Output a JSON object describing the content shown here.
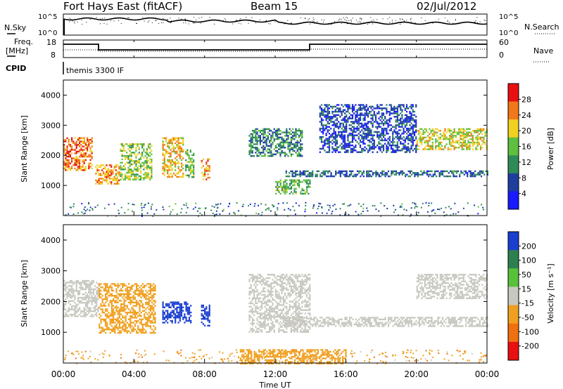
{
  "header": {
    "station": "Fort Hays East (fitACF)",
    "beam": "Beam 15",
    "date": "02/Jul/2012"
  },
  "noise_panel": {
    "left_label": "N.Sky",
    "right_label": "N.Search",
    "left_ticks": [
      "10^5",
      "10^0"
    ],
    "right_ticks": [
      "10^5",
      "10^0"
    ]
  },
  "freq_panel": {
    "left_label_1": "Freq.",
    "left_label_2": "[MHz]",
    "right_label": "Nave",
    "left_ticks": [
      "18",
      "8"
    ],
    "right_ticks": [
      "60",
      "0"
    ]
  },
  "cpid": {
    "label": "CPID",
    "value": "themis 3300 IF"
  },
  "power_panel": {
    "ylabel": "Slant Range [km]",
    "yticks": [
      "4000",
      "3000",
      "2000",
      "1000"
    ],
    "colorbar_label": "Power [dB]",
    "colorbar_ticks": [
      "28",
      "24",
      "20",
      "16",
      "12",
      "8",
      "4"
    ],
    "colors": [
      "#1a1aff",
      "#1e3f9e",
      "#2e8b57",
      "#5fbf3f",
      "#f0d020",
      "#f07818",
      "#e81010"
    ]
  },
  "velocity_panel": {
    "ylabel": "Slant Range [km]",
    "yticks": [
      "4000",
      "3000",
      "2000",
      "1000"
    ],
    "colorbar_label": "Velocity [m s⁻¹]",
    "colorbar_ticks": [
      "200",
      "100",
      "50",
      "15",
      "-15",
      "-50",
      "-100",
      "-200"
    ],
    "colors": [
      "#1a3fd0",
      "#2e7f4f",
      "#57c13a",
      "#c8c8c0",
      "#f0a020",
      "#f07010",
      "#e81010"
    ]
  },
  "x_axis": {
    "ticks": [
      "00:00",
      "04:00",
      "08:00",
      "12:00",
      "16:00",
      "20:00",
      "00:00"
    ],
    "label": "Time UT"
  },
  "chart_data": [
    {
      "type": "heatmap",
      "name": "power",
      "xlabel": "Time UT",
      "ylabel": "Slant Range [km]",
      "xlim_hours": [
        0,
        24
      ],
      "ylim": [
        0,
        4500
      ],
      "zlabel": "Power [dB]",
      "zlim": [
        0,
        30
      ],
      "regions": [
        {
          "t": [
            0.0,
            1.6
          ],
          "r": [
            1500,
            2600
          ],
          "p": 24
        },
        {
          "t": [
            1.8,
            3.2
          ],
          "r": [
            1050,
            1700
          ],
          "p": 22
        },
        {
          "t": [
            3.2,
            5.0
          ],
          "r": [
            1200,
            2400
          ],
          "p": 16
        },
        {
          "t": [
            5.6,
            6.8
          ],
          "r": [
            1300,
            2600
          ],
          "p": 20
        },
        {
          "t": [
            6.9,
            7.4
          ],
          "r": [
            1300,
            2200
          ],
          "p": 14
        },
        {
          "t": [
            7.8,
            8.3
          ],
          "r": [
            1200,
            1900
          ],
          "p": 22
        },
        {
          "t": [
            10.5,
            13.5
          ],
          "r": [
            2000,
            2900
          ],
          "p": 10
        },
        {
          "t": [
            12.0,
            14.0
          ],
          "r": [
            700,
            1200
          ],
          "p": 14
        },
        {
          "t": [
            12.5,
            24.0
          ],
          "r": [
            1300,
            1500
          ],
          "p": 8
        },
        {
          "t": [
            20.0,
            24.0
          ],
          "r": [
            2200,
            2900
          ],
          "p": 18
        },
        {
          "t": [
            14.5,
            20.0
          ],
          "r": [
            2100,
            3700
          ],
          "p": 6
        }
      ]
    },
    {
      "type": "heatmap",
      "name": "velocity",
      "xlabel": "Time UT",
      "ylabel": "Slant Range [km]",
      "xlim_hours": [
        0,
        24
      ],
      "ylim": [
        0,
        4500
      ],
      "zlabel": "Velocity [m s⁻¹]",
      "zlim": [
        -200,
        200
      ],
      "regions": [
        {
          "t": [
            0.0,
            2.0
          ],
          "r": [
            1500,
            2700
          ],
          "v": 0
        },
        {
          "t": [
            2.0,
            5.2
          ],
          "r": [
            1000,
            2600
          ],
          "v": -40
        },
        {
          "t": [
            5.6,
            7.2
          ],
          "r": [
            1300,
            2000
          ],
          "v": 220
        },
        {
          "t": [
            7.8,
            8.3
          ],
          "r": [
            1200,
            1900
          ],
          "v": 220
        },
        {
          "t": [
            10.5,
            14.0
          ],
          "r": [
            1000,
            2900
          ],
          "v": 0
        },
        {
          "t": [
            12.5,
            24.0
          ],
          "r": [
            1200,
            1500
          ],
          "v": 0
        },
        {
          "t": [
            20.0,
            24.0
          ],
          "r": [
            2100,
            2900
          ],
          "v": 0
        },
        {
          "t": [
            10.0,
            16.0
          ],
          "r": [
            0,
            450
          ],
          "v": -40
        }
      ]
    }
  ]
}
